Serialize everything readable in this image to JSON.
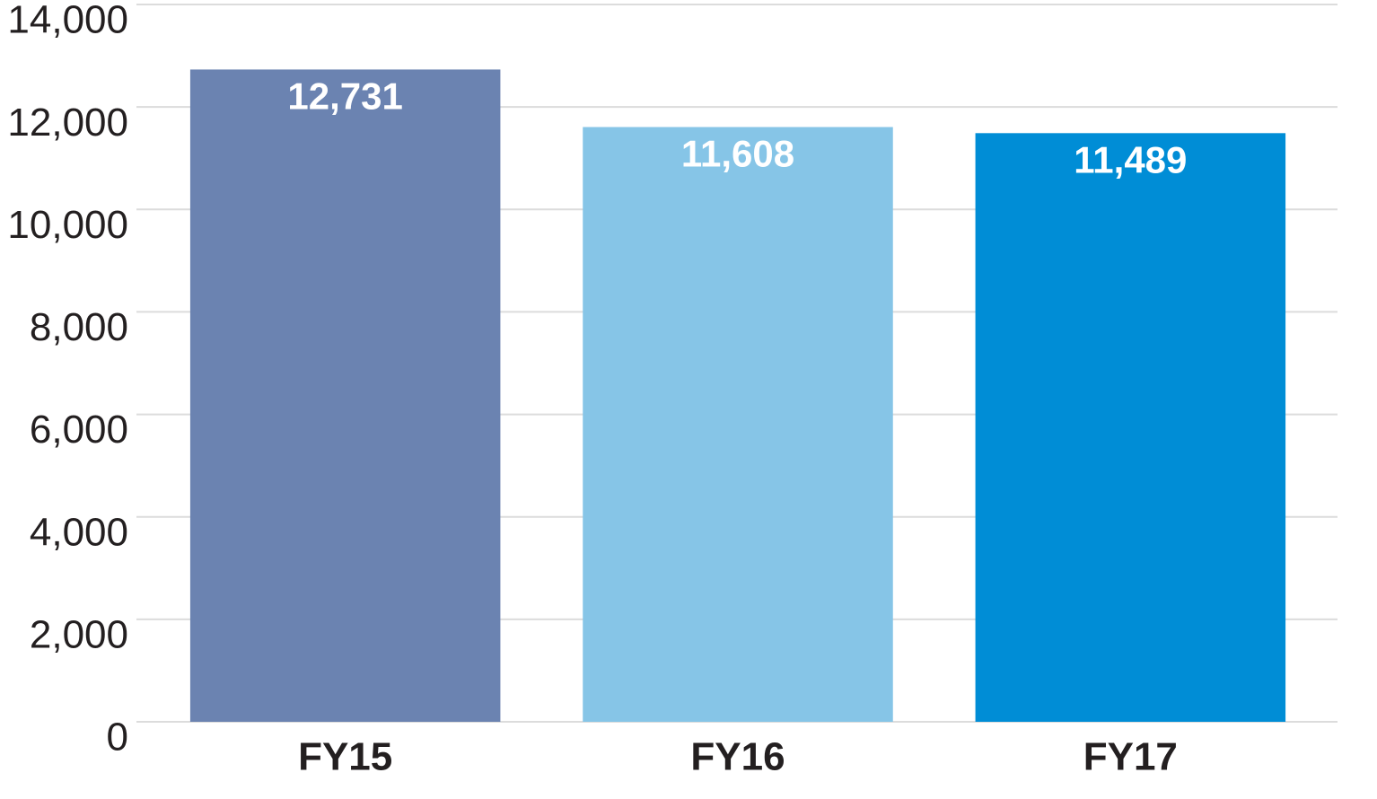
{
  "chart_data": {
    "type": "bar",
    "categories": [
      "FY15",
      "FY16",
      "FY17"
    ],
    "values": [
      12731,
      11608,
      11489
    ],
    "value_labels": [
      "12,731",
      "11,608",
      "11,489"
    ],
    "colors": [
      "#6b83b1",
      "#86c5e7",
      "#008dd6"
    ],
    "ylim": [
      0,
      14000
    ],
    "yticks": [
      0,
      {
        "value": 2000,
        "label": "2,000"
      },
      {
        "value": 4000,
        "label": "4,000"
      },
      {
        "value": 6000,
        "label": "6,000"
      },
      {
        "value": 8000,
        "label": "8,000"
      },
      {
        "value": 10000,
        "label": "10,000"
      },
      {
        "value": 12000,
        "label": "12,000"
      },
      {
        "value": 14000,
        "label": "14,000"
      }
    ],
    "grid": true
  }
}
